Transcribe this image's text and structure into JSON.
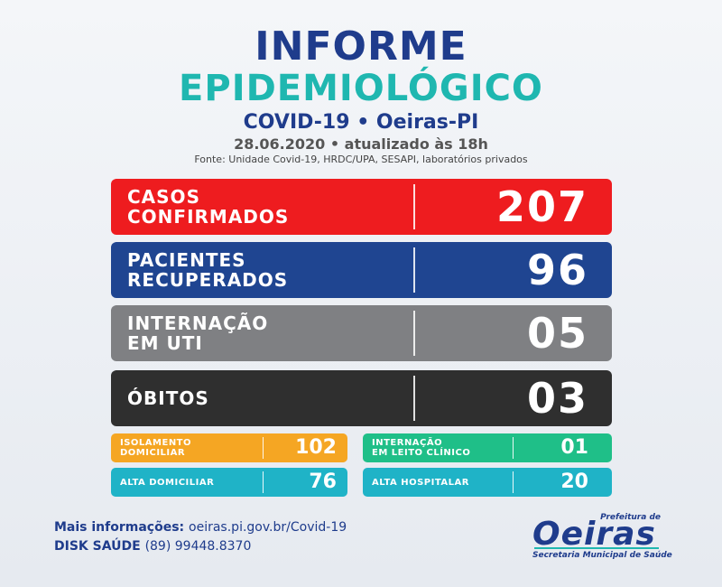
{
  "header": {
    "title_line1": "INFORME",
    "title_line2": "EPIDEMIOLÓGICO",
    "subtitle": "COVID-19 • Oeiras-PI",
    "date": "28.06.2020 • atualizado às 18h",
    "source": "Fonte: Unidade Covid-19, HRDC/UPA, SESAPI, laboratórios privados"
  },
  "stats": [
    {
      "label_line1": "CASOS",
      "label_line2": "CONFIRMADOS",
      "value": "207",
      "color": "#ee1c1f"
    },
    {
      "label_line1": "PACIENTES",
      "label_line2": "RECUPERADOS",
      "value": "96",
      "color": "#1f4591"
    },
    {
      "label_line1": "INTERNAÇÃO",
      "label_line2": "EM UTI",
      "value": "05",
      "color": "#7f8083"
    },
    {
      "label_line1": "ÓBITOS",
      "label_line2": "",
      "value": "03",
      "color": "#2f2f2f"
    }
  ],
  "small_stats": [
    {
      "label_line1": "ISOLAMENTO",
      "label_line2": "DOMICILIAR",
      "value": "102",
      "color": "#f5a623"
    },
    {
      "label_line1": "INTERNAÇÃO",
      "label_line2": "EM LEITO CLÍNICO",
      "value": "01",
      "color": "#1fbf88"
    },
    {
      "label_line1": "ALTA DOMICILIAR",
      "label_line2": "",
      "value": "76",
      "color": "#1fb3c7"
    },
    {
      "label_line1": "ALTA HOSPITALAR",
      "label_line2": "",
      "value": "20",
      "color": "#1fb3c7"
    }
  ],
  "footer": {
    "info_label": "Mais informações:",
    "info_url": "oeiras.pi.gov.br/Covid-19",
    "disk_label": "DISK SAÚDE",
    "disk_phone": "(89) 99448.8370"
  },
  "logo": {
    "prefeitura": "Prefeitura de",
    "name": "Oeiras",
    "secretaria": "Secretaria Municipal de Saúde"
  }
}
